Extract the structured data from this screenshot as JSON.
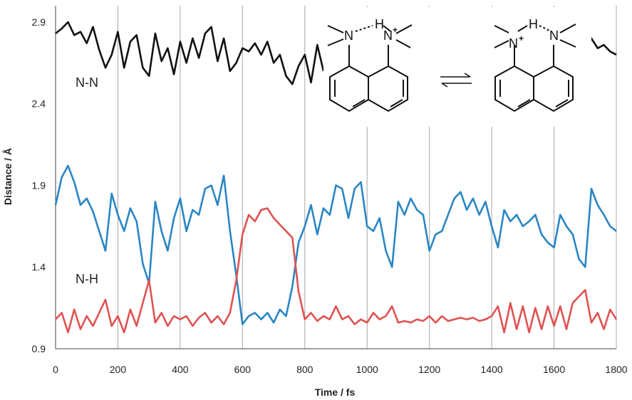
{
  "chart_data": {
    "type": "line",
    "xlabel": "Time / fs",
    "ylabel": "Distance / Å",
    "xlim": [
      0,
      1800
    ],
    "ylim": [
      0.9,
      3.0
    ],
    "xticks": [
      0,
      200,
      400,
      600,
      800,
      1000,
      1200,
      1400,
      1600,
      1800
    ],
    "yticks": [
      0.9,
      1.4,
      1.9,
      2.4,
      2.9
    ],
    "xtick_labels": [
      "0",
      "200",
      "400",
      "600",
      "800",
      "1000",
      "1200",
      "1400",
      "1600",
      "1800"
    ],
    "ytick_labels": [
      "0.9",
      "1.4",
      "1.9",
      "2.4",
      "2.9"
    ],
    "grid": "vertical",
    "annotations": {
      "nn_label": "N-N",
      "nh_label": "N-H"
    },
    "series": [
      {
        "name": "N-N",
        "color": "#111111",
        "gap": [
          860,
          1700
        ],
        "x": [
          0,
          20,
          40,
          60,
          80,
          100,
          120,
          140,
          160,
          180,
          200,
          220,
          240,
          260,
          280,
          300,
          320,
          340,
          360,
          380,
          400,
          420,
          440,
          460,
          480,
          500,
          520,
          540,
          560,
          580,
          600,
          620,
          640,
          660,
          680,
          700,
          720,
          740,
          760,
          780,
          800,
          820,
          840,
          860,
          1700,
          1720,
          1740,
          1760,
          1780,
          1800
        ],
        "y": [
          2.83,
          2.86,
          2.9,
          2.82,
          2.84,
          2.77,
          2.87,
          2.73,
          2.62,
          2.7,
          2.84,
          2.62,
          2.78,
          2.82,
          2.62,
          2.57,
          2.83,
          2.66,
          2.74,
          2.58,
          2.78,
          2.65,
          2.8,
          2.68,
          2.83,
          2.87,
          2.66,
          2.8,
          2.6,
          2.65,
          2.74,
          2.72,
          2.77,
          2.7,
          2.78,
          2.65,
          2.7,
          2.57,
          2.52,
          2.63,
          2.7,
          2.53,
          2.76,
          2.6,
          2.68,
          2.8,
          2.74,
          2.76,
          2.72,
          2.7
        ]
      },
      {
        "name": "N-H (blue)",
        "color": "#2a86c4",
        "x": [
          0,
          20,
          40,
          60,
          80,
          100,
          120,
          140,
          160,
          180,
          200,
          220,
          240,
          260,
          280,
          300,
          320,
          340,
          360,
          380,
          400,
          420,
          440,
          460,
          480,
          500,
          520,
          540,
          560,
          580,
          600,
          620,
          640,
          660,
          680,
          700,
          720,
          740,
          760,
          780,
          800,
          820,
          840,
          860,
          880,
          900,
          920,
          940,
          960,
          980,
          1000,
          1020,
          1040,
          1060,
          1080,
          1100,
          1120,
          1140,
          1160,
          1180,
          1200,
          1220,
          1240,
          1260,
          1280,
          1300,
          1320,
          1340,
          1360,
          1380,
          1400,
          1420,
          1440,
          1460,
          1480,
          1500,
          1520,
          1540,
          1560,
          1580,
          1600,
          1620,
          1640,
          1660,
          1680,
          1700,
          1720,
          1740,
          1760,
          1780,
          1800
        ],
        "y": [
          1.78,
          1.95,
          2.02,
          1.92,
          1.78,
          1.82,
          1.74,
          1.62,
          1.5,
          1.85,
          1.72,
          1.62,
          1.76,
          1.68,
          1.42,
          1.3,
          1.8,
          1.62,
          1.5,
          1.7,
          1.82,
          1.62,
          1.75,
          1.72,
          1.88,
          1.9,
          1.78,
          1.96,
          1.62,
          1.35,
          1.05,
          1.1,
          1.12,
          1.08,
          1.12,
          1.06,
          1.14,
          1.1,
          1.28,
          1.55,
          1.65,
          1.78,
          1.6,
          1.76,
          1.72,
          1.9,
          1.88,
          1.7,
          1.88,
          1.92,
          1.65,
          1.62,
          1.7,
          1.5,
          1.4,
          1.8,
          1.72,
          1.82,
          1.75,
          1.72,
          1.5,
          1.6,
          1.62,
          1.72,
          1.82,
          1.86,
          1.75,
          1.82,
          1.72,
          1.8,
          1.65,
          1.52,
          1.75,
          1.68,
          1.72,
          1.65,
          1.68,
          1.72,
          1.6,
          1.55,
          1.52,
          1.72,
          1.65,
          1.6,
          1.45,
          1.4,
          1.88,
          1.78,
          1.72,
          1.65,
          1.62
        ]
      },
      {
        "name": "N-H (red)",
        "color": "#e05252",
        "x": [
          0,
          20,
          40,
          60,
          80,
          100,
          120,
          140,
          160,
          180,
          200,
          220,
          240,
          260,
          280,
          300,
          320,
          340,
          360,
          380,
          400,
          420,
          440,
          460,
          480,
          500,
          520,
          540,
          560,
          580,
          600,
          620,
          640,
          660,
          680,
          700,
          720,
          740,
          760,
          780,
          800,
          820,
          840,
          860,
          880,
          900,
          920,
          940,
          960,
          980,
          1000,
          1020,
          1040,
          1060,
          1080,
          1100,
          1120,
          1140,
          1160,
          1180,
          1200,
          1220,
          1240,
          1260,
          1280,
          1300,
          1320,
          1340,
          1360,
          1380,
          1400,
          1420,
          1440,
          1460,
          1480,
          1500,
          1520,
          1540,
          1560,
          1580,
          1600,
          1620,
          1640,
          1660,
          1680,
          1700,
          1720,
          1740,
          1760,
          1780,
          1800
        ],
        "y": [
          1.08,
          1.12,
          1.0,
          1.14,
          1.02,
          1.1,
          1.04,
          1.12,
          1.2,
          1.04,
          1.1,
          1.0,
          1.14,
          1.04,
          1.18,
          1.32,
          1.06,
          1.12,
          1.04,
          1.1,
          1.08,
          1.1,
          1.04,
          1.09,
          1.12,
          1.06,
          1.1,
          1.05,
          1.12,
          1.32,
          1.6,
          1.72,
          1.68,
          1.75,
          1.76,
          1.7,
          1.66,
          1.62,
          1.58,
          1.25,
          1.08,
          1.12,
          1.07,
          1.1,
          1.08,
          1.16,
          1.08,
          1.1,
          1.05,
          1.08,
          1.06,
          1.12,
          1.08,
          1.1,
          1.16,
          1.06,
          1.07,
          1.06,
          1.08,
          1.07,
          1.1,
          1.06,
          1.1,
          1.07,
          1.08,
          1.09,
          1.08,
          1.09,
          1.07,
          1.08,
          1.1,
          1.16,
          1.0,
          1.18,
          1.02,
          1.16,
          1.0,
          1.15,
          1.02,
          1.16,
          1.04,
          1.16,
          1.02,
          1.18,
          1.22,
          1.26,
          1.06,
          1.12,
          1.02,
          1.14,
          1.08
        ]
      }
    ]
  },
  "scheme": {
    "left": {
      "n_left": "N",
      "h": "H",
      "n_right": "N",
      "charge": "+"
    },
    "right": {
      "n_left": "N",
      "h": "H",
      "n_right": "N",
      "charge": "+"
    }
  }
}
